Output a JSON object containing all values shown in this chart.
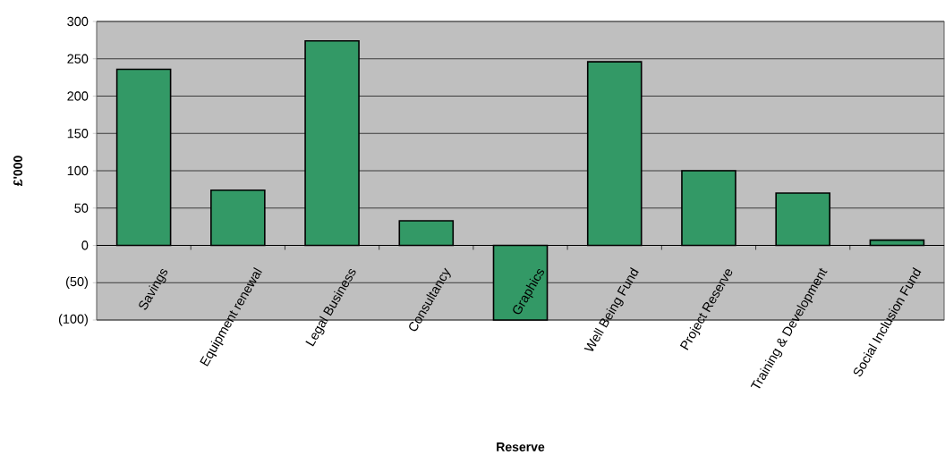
{
  "chart_data": {
    "type": "bar",
    "xlabel": "Reserve",
    "ylabel": "£'000",
    "categories": [
      "Savings",
      "Equipment renewal",
      "Legal Business",
      "Consultancy",
      "Graphics",
      "Well Being Fund",
      "Project Reserve",
      "Training & Development",
      "Social Inclusion Fund"
    ],
    "values": [
      236,
      74,
      274,
      33,
      -100,
      246,
      100,
      70,
      7
    ],
    "color": "#339966",
    "ylim": [
      -100,
      300
    ],
    "yticks": [
      {
        "value": -100,
        "label": "(100)"
      },
      {
        "value": -50,
        "label": "(50)"
      },
      0,
      50,
      100,
      150,
      200,
      250,
      300
    ],
    "grid": "y"
  }
}
